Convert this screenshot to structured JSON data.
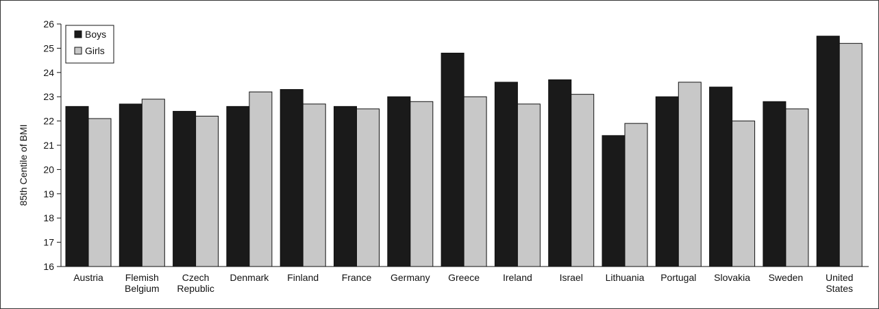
{
  "chart_data": {
    "type": "bar",
    "title": "",
    "xlabel": "",
    "ylabel": "85th Centile of BMI",
    "ylim": [
      16,
      26
    ],
    "yticks": [
      16,
      17,
      18,
      19,
      20,
      21,
      22,
      23,
      24,
      25,
      26
    ],
    "grid": false,
    "legend_position": "top-left",
    "categories": [
      [
        "Austria"
      ],
      [
        "Flemish",
        "Belgium"
      ],
      [
        "Czech",
        "Republic"
      ],
      [
        "Denmark"
      ],
      [
        "Finland"
      ],
      [
        "France"
      ],
      [
        "Germany"
      ],
      [
        "Greece"
      ],
      [
        "Ireland"
      ],
      [
        "Israel"
      ],
      [
        "Lithuania"
      ],
      [
        "Portugal"
      ],
      [
        "Slovakia"
      ],
      [
        "Sweden"
      ],
      [
        "United",
        "States"
      ]
    ],
    "series": [
      {
        "name": "Boys",
        "color": "#1a1a1a",
        "values": [
          22.6,
          22.7,
          22.4,
          22.6,
          23.3,
          22.6,
          23.0,
          24.8,
          23.6,
          23.7,
          21.4,
          23.0,
          23.4,
          22.8,
          25.5
        ]
      },
      {
        "name": "Girls",
        "color": "#c8c8c8",
        "values": [
          22.1,
          22.9,
          22.2,
          23.2,
          22.7,
          22.5,
          22.8,
          23.0,
          22.7,
          23.1,
          21.9,
          23.6,
          22.0,
          22.5,
          25.2
        ]
      }
    ]
  }
}
